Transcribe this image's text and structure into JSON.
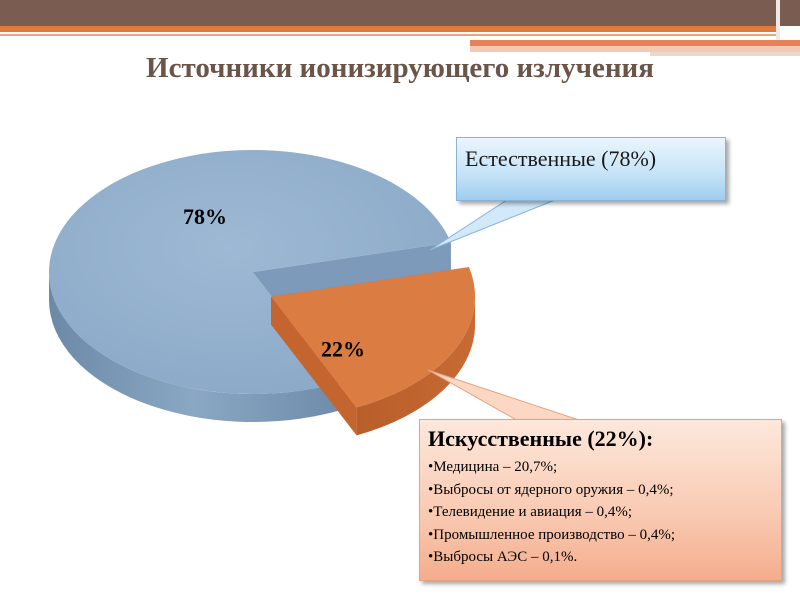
{
  "title": "Источники ионизирующего излучения",
  "chart_data": {
    "type": "pie",
    "style": "3d-exploded",
    "title": "Источники ионизирующего излучения",
    "categories": [
      "Естественные",
      "Искусственные"
    ],
    "values": [
      78,
      22
    ],
    "data_labels": [
      "78%",
      "22%"
    ],
    "colors": [
      "#92b0cd",
      "#db7c43"
    ],
    "legend": "callouts"
  },
  "callouts": {
    "natural": {
      "text": "Естественные (78%)"
    },
    "artificial": {
      "heading": "Искусственные (22%):",
      "items": [
        "Медицина – 20,7%;",
        "Выбросы от ядерного оружия – 0,4%;",
        "Телевидение и авиация – 0,4%;",
        "Промышленное производство – 0,4%;",
        "Выбросы АЭС – 0,1%."
      ]
    }
  }
}
